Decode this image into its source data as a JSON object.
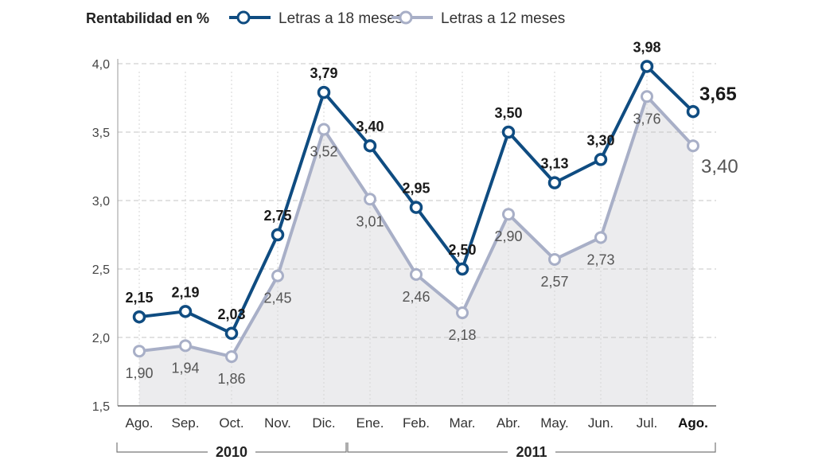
{
  "chart_data": {
    "type": "line",
    "title": "Rentabilidad en %",
    "categories": [
      "Ago.",
      "Sep.",
      "Oct.",
      "Nov.",
      "Dic.",
      "Ene.",
      "Feb.",
      "Mar.",
      "Abr.",
      "May.",
      "Jun.",
      "Jul.",
      "Ago."
    ],
    "series": [
      {
        "name": "Letras a 18 meses",
        "color": "#0f4c81",
        "values": [
          2.15,
          2.19,
          2.03,
          2.75,
          3.79,
          3.4,
          2.95,
          2.5,
          3.5,
          3.13,
          3.3,
          3.98,
          3.65
        ],
        "labels": [
          "2,15",
          "2,19",
          "2,03",
          "2,75",
          "3,79",
          "3,40",
          "2,95",
          "2,50",
          "3,50",
          "3,13",
          "3,30",
          "3,98",
          "3,65"
        ]
      },
      {
        "name": "Letras a 12 meses",
        "color": "#a8afc7",
        "values": [
          1.9,
          1.94,
          1.86,
          2.45,
          3.52,
          3.01,
          2.46,
          2.18,
          2.9,
          2.57,
          2.73,
          3.76,
          3.4
        ],
        "labels": [
          "1,90",
          "1,94",
          "1,86",
          "2,45",
          "3,52",
          "3,01",
          "2,46",
          "2,18",
          "2,90",
          "2,57",
          "2,73",
          "3,76",
          "3,40"
        ]
      }
    ],
    "y_ticks": [
      "1,5",
      "2,0",
      "2,5",
      "3,0",
      "3,5",
      "4,0"
    ],
    "y_tick_values": [
      1.5,
      2.0,
      2.5,
      3.0,
      3.5,
      4.0
    ],
    "ylim": [
      1.5,
      4.0
    ],
    "grid": true,
    "legend_position": "top",
    "year_groups": [
      {
        "label": "2010",
        "start_index": 0,
        "end_index": 4
      },
      {
        "label": "2011",
        "start_index": 5,
        "end_index": 12
      }
    ],
    "highlight_last": true,
    "area_fill_color": "#ececee"
  }
}
